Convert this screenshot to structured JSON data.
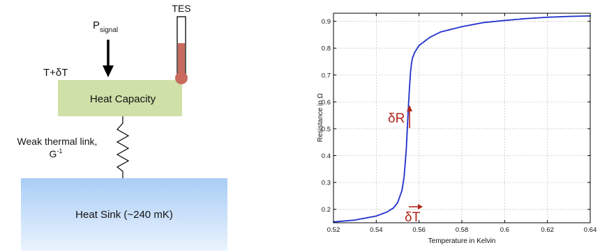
{
  "diagram": {
    "p_signal": {
      "main": "P",
      "sub": "signal"
    },
    "temperature_label": "T+δT",
    "tes_label": "TES",
    "heat_capacity_label": "Heat Capacity",
    "thermal_link": {
      "line1": "Weak thermal link,",
      "line2_main": "G",
      "line2_sup": "-1"
    },
    "heat_sink_label": "Heat Sink (~240 mK)",
    "colors": {
      "heat_capacity_fill": "#cfe0a8",
      "heat_sink_top": "#a9cdf6",
      "heat_sink_bottom": "#eaf3fd",
      "thermometer_fill": "#c96a5e"
    }
  },
  "chart_data": {
    "type": "scatter",
    "xlabel": "Temperature in Kelvin",
    "ylabel": "Resistance in Ω",
    "xlim": [
      0.52,
      0.64
    ],
    "ylim": [
      0.15,
      0.93
    ],
    "xticks": [
      "0.52",
      "0.54",
      "0.56",
      "0.58",
      "0.6",
      "0.62",
      "0.64"
    ],
    "yticks": [
      "0.2",
      "0.3",
      "0.4",
      "0.5",
      "0.6",
      "0.7",
      "0.8",
      "0.9"
    ],
    "grid": true,
    "marker_color": "#2233cc",
    "annotations": {
      "delta_r": "δR",
      "delta_t": "δT"
    },
    "series": [
      {
        "x": [
          0.52,
          0.53,
          0.54,
          0.545,
          0.548,
          0.55,
          0.552,
          0.553,
          0.554,
          0.5545,
          0.555,
          0.5555,
          0.556,
          0.5565,
          0.557,
          0.558,
          0.56,
          0.565,
          0.57,
          0.58,
          0.59,
          0.6,
          0.61,
          0.62,
          0.63,
          0.64
        ],
        "y": [
          0.153,
          0.16,
          0.175,
          0.19,
          0.205,
          0.225,
          0.27,
          0.32,
          0.42,
          0.5,
          0.58,
          0.65,
          0.71,
          0.745,
          0.765,
          0.785,
          0.81,
          0.84,
          0.86,
          0.88,
          0.895,
          0.903,
          0.91,
          0.915,
          0.918,
          0.92
        ]
      }
    ]
  }
}
